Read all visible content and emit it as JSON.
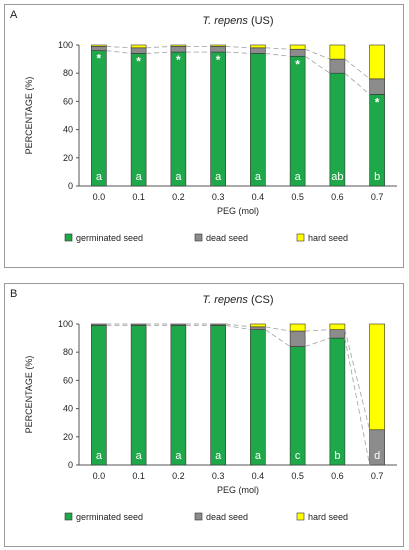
{
  "colors": {
    "germinated": "#1fa84a",
    "dead": "#8c8c8c",
    "hard": "#ffff00",
    "label_text": "#ffffff"
  },
  "chart_data": [
    {
      "panel_letter": "A",
      "type": "bar",
      "stacked": true,
      "title_species": "T. repens",
      "title_suffix": "(US)",
      "xlabel": "PEG (mol)",
      "ylabel": "PERCENTAGE (%)",
      "ylim": [
        0,
        100
      ],
      "yticks": [
        0,
        20,
        40,
        60,
        80,
        100
      ],
      "categories": [
        "0.0",
        "0.1",
        "0.2",
        "0.3",
        "0.4",
        "0.5",
        "0.6",
        "0.7"
      ],
      "series": [
        {
          "name": "germinated seed",
          "values": [
            96,
            94,
            95,
            95,
            94,
            92,
            80,
            65
          ]
        },
        {
          "name": "dead seed",
          "values": [
            3,
            4,
            4,
            4,
            4,
            5,
            10,
            11
          ]
        },
        {
          "name": "hard seed",
          "values": [
            1,
            2,
            1,
            1,
            2,
            3,
            10,
            24
          ]
        }
      ],
      "letters": [
        "a",
        "a",
        "a",
        "a",
        "a",
        "a",
        "ab",
        "b"
      ],
      "asterisks": [
        "*",
        "*",
        "*",
        "*",
        "",
        "*",
        "",
        "*"
      ],
      "legend": [
        "germinated seed",
        "dead seed",
        "hard seed"
      ],
      "legend_position": "bottom",
      "grid": false
    },
    {
      "panel_letter": "B",
      "type": "bar",
      "stacked": true,
      "title_species": "T. repens",
      "title_suffix": "(CS)",
      "xlabel": "PEG (mol)",
      "ylabel": "PERCENTAGE (%)",
      "ylim": [
        0,
        100
      ],
      "yticks": [
        0,
        20,
        40,
        60,
        80,
        100
      ],
      "categories": [
        "0.0",
        "0.1",
        "0.2",
        "0.3",
        "0.4",
        "0.5",
        "0.6",
        "0.7"
      ],
      "series": [
        {
          "name": "germinated seed",
          "values": [
            99,
            99,
            99,
            99,
            96,
            84,
            90,
            0
          ]
        },
        {
          "name": "dead seed",
          "values": [
            1,
            1,
            1,
            1,
            2,
            11,
            6,
            25
          ]
        },
        {
          "name": "hard seed",
          "values": [
            0,
            0,
            0,
            0,
            2,
            5,
            4,
            75
          ]
        }
      ],
      "letters": [
        "a",
        "a",
        "a",
        "a",
        "a",
        "c",
        "b",
        "d"
      ],
      "asterisks": [
        "",
        "",
        "",
        "",
        "",
        "",
        "",
        ""
      ],
      "legend": [
        "germinated seed",
        "dead seed",
        "hard seed"
      ],
      "legend_position": "bottom",
      "grid": false
    }
  ]
}
